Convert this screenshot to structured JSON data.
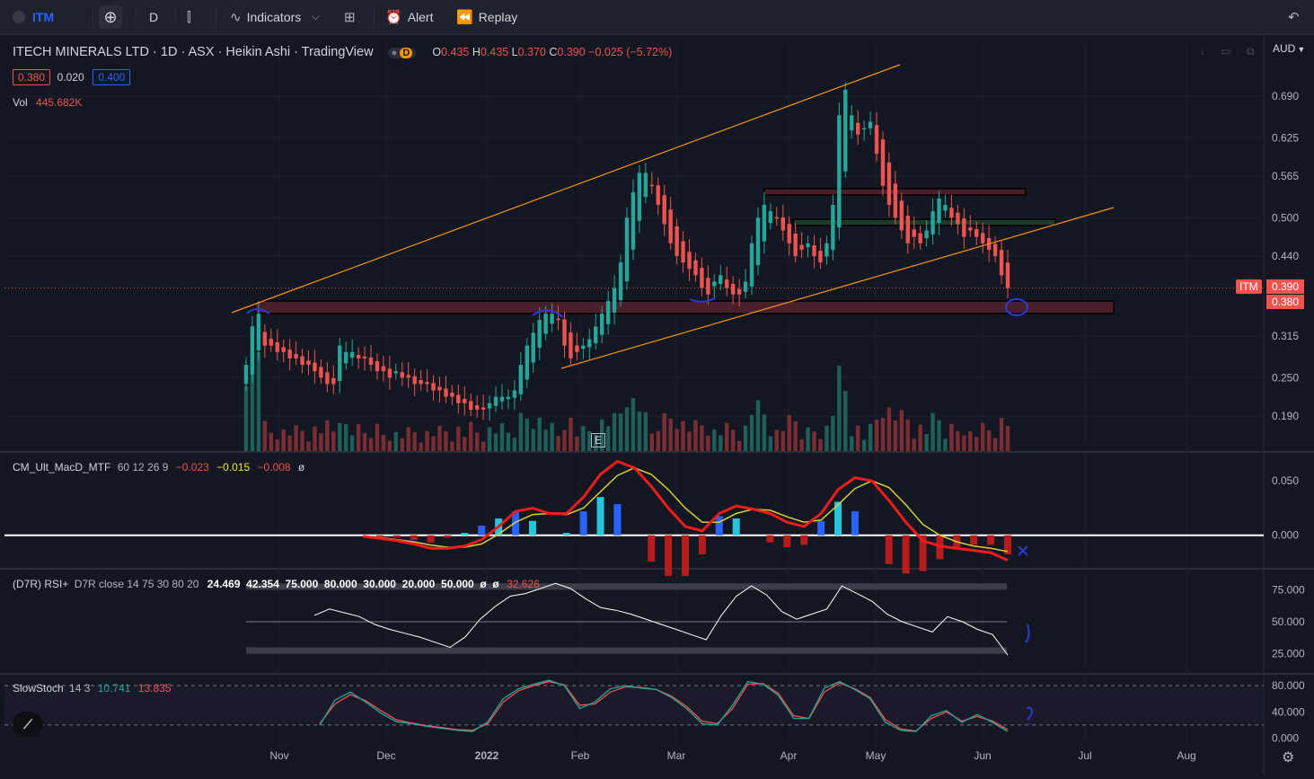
{
  "toolbar": {
    "symbol": "ITM",
    "interval": "D",
    "indicators": "Indicators",
    "alert": "Alert",
    "replay": "Replay"
  },
  "header": {
    "title": "ITECH MINERALS LTD · 1D · ASX · Heikin Ashi · TradingView",
    "badge": "D",
    "ohlc": {
      "o_label": "O",
      "o": "0.435",
      "h_label": "H",
      "h": "0.435",
      "l_label": "L",
      "l": "0.370",
      "c_label": "C",
      "c": "0.390",
      "chg": "−0.025 (−5.72%)"
    },
    "bid": "0.380",
    "spread": "0.020",
    "ask": "0.400",
    "vol_label": "Vol",
    "vol_value": "445.682K",
    "currency": "AUD"
  },
  "price_tags": {
    "symbol": "ITM",
    "last": "0.390",
    "other": "0.380"
  },
  "macd_legend": {
    "name": "CM_Ult_MacD_MTF",
    "params": "60 12 26 9",
    "v1": "−0.023",
    "v2": "−0.015",
    "v3": "−0.008",
    "v4": "ø"
  },
  "rsi_legend": {
    "name": "(D7R) RSI+",
    "params": "D7R close 14 75 30 80 20",
    "values": "24.469  42.354  75.000  80.000  30.000  20.000  50.000  ø  ø",
    "last": "32.626"
  },
  "stoch_legend": {
    "name": "SlowStoch",
    "params": "14 3",
    "k": "10.741",
    "d": "13.835"
  },
  "e_marker": "E",
  "colors": {
    "up": "#26a69a",
    "down": "#ef5350",
    "bg": "#131722",
    "orange": "#f7931a",
    "zone_red": "#4a1f2b",
    "zone_green": "#1e3a2b",
    "blue_ink": "#2a3bd8"
  },
  "chart_data": [
    {
      "type": "candlestick",
      "title": "ITECH MINERALS LTD · 1D · ASX · Heikin Ashi",
      "x_ticks": [
        "Nov",
        "Dec",
        "2022",
        "Feb",
        "Mar",
        "Apr",
        "May",
        "Jun",
        "Jul",
        "Aug"
      ],
      "y_ticks": [
        0.69,
        0.625,
        0.565,
        0.5,
        0.44,
        0.315,
        0.25,
        0.19
      ],
      "y_tick_labels": [
        "0.690",
        "0.625",
        "0.565",
        "0.500",
        "0.440",
        "0.315",
        "0.250",
        "0.190"
      ],
      "ylim": [
        0.135,
        0.745
      ],
      "closes": [
        0.27,
        0.33,
        0.35,
        0.3,
        0.3,
        0.29,
        0.29,
        0.28,
        0.28,
        0.27,
        0.27,
        0.26,
        0.25,
        0.24,
        0.24,
        0.3,
        0.29,
        0.29,
        0.28,
        0.28,
        0.27,
        0.26,
        0.26,
        0.25,
        0.26,
        0.25,
        0.25,
        0.24,
        0.24,
        0.24,
        0.23,
        0.23,
        0.22,
        0.22,
        0.21,
        0.21,
        0.2,
        0.2,
        0.2,
        0.21,
        0.22,
        0.22,
        0.22,
        0.23,
        0.27,
        0.3,
        0.32,
        0.34,
        0.35,
        0.35,
        0.34,
        0.3,
        0.28,
        0.29,
        0.3,
        0.31,
        0.33,
        0.35,
        0.37,
        0.39,
        0.43,
        0.5,
        0.54,
        0.57,
        0.57,
        0.55,
        0.52,
        0.49,
        0.46,
        0.44,
        0.43,
        0.42,
        0.41,
        0.39,
        0.38,
        0.4,
        0.41,
        0.39,
        0.38,
        0.38,
        0.4,
        0.46,
        0.5,
        0.52,
        0.51,
        0.5,
        0.48,
        0.46,
        0.44,
        0.45,
        0.46,
        0.44,
        0.43,
        0.46,
        0.52,
        0.66,
        0.7,
        0.66,
        0.63,
        0.64,
        0.65,
        0.6,
        0.55,
        0.52,
        0.5,
        0.48,
        0.46,
        0.47,
        0.46,
        0.48,
        0.51,
        0.53,
        0.52,
        0.5,
        0.49,
        0.47,
        0.48,
        0.47,
        0.46,
        0.45,
        0.44,
        0.41,
        0.39
      ],
      "ohlc_last": {
        "o": 0.435,
        "h": 0.435,
        "l": 0.37,
        "c": 0.39,
        "change": -0.025,
        "change_pct": -5.72
      },
      "volume_last": "445.682K",
      "horizontal_levels": [
        0.39,
        0.38
      ],
      "currency": "AUD"
    },
    {
      "type": "line",
      "title": "CM_Ult_MacD_MTF 60 12 26 9",
      "y_ticks": [
        0.05,
        0.0
      ],
      "y_tick_labels": [
        "0.050",
        "0.000"
      ],
      "ylim": [
        -0.03,
        0.075
      ],
      "series": [
        {
          "name": "MACD",
          "values": [
            -0.001,
            -0.003,
            -0.005,
            -0.008,
            -0.012,
            -0.012,
            -0.01,
            -0.004,
            0.008,
            0.022,
            0.025,
            0.02,
            0.02,
            0.035,
            0.056,
            0.068,
            0.062,
            0.045,
            0.025,
            0.008,
            0.004,
            0.02,
            0.027,
            0.024,
            0.02,
            0.012,
            0.008,
            0.02,
            0.042,
            0.053,
            0.05,
            0.032,
            0.012,
            -0.005,
            -0.01,
            -0.012,
            -0.014,
            -0.016,
            -0.023
          ]
        },
        {
          "name": "Signal",
          "values": [
            -0.001,
            -0.002,
            -0.004,
            -0.006,
            -0.009,
            -0.011,
            -0.011,
            -0.008,
            0.001,
            0.012,
            0.019,
            0.02,
            0.019,
            0.025,
            0.04,
            0.055,
            0.062,
            0.056,
            0.042,
            0.025,
            0.012,
            0.012,
            0.02,
            0.024,
            0.023,
            0.017,
            0.012,
            0.014,
            0.028,
            0.043,
            0.05,
            0.044,
            0.028,
            0.01,
            0.0,
            -0.006,
            -0.01,
            -0.012,
            -0.015
          ]
        }
      ],
      "last": {
        "macd": -0.023,
        "signal": -0.015,
        "histogram": -0.008
      }
    },
    {
      "type": "line",
      "title": "(D7R) RSI+ D7R close 14 75 30 80 20",
      "y_ticks": [
        75,
        50,
        25
      ],
      "y_tick_labels": [
        "75.000",
        "50.000",
        "25.000"
      ],
      "ylim": [
        10,
        90
      ],
      "levels": [
        75,
        80,
        30,
        20,
        50
      ],
      "series": [
        {
          "name": "RSI",
          "values": [
            55,
            60,
            57,
            54,
            48,
            44,
            41,
            38,
            34,
            30,
            38,
            52,
            62,
            70,
            72,
            76,
            80,
            76,
            68,
            61,
            59,
            56,
            52,
            48,
            44,
            40,
            36,
            55,
            70,
            78,
            71,
            58,
            52,
            56,
            60,
            78,
            72,
            66,
            56,
            50,
            46,
            42,
            54,
            50,
            44,
            40,
            24
          ]
        }
      ],
      "last": 24.469
    },
    {
      "type": "line",
      "title": "SlowStoch 14 3",
      "y_ticks": [
        80,
        40,
        0
      ],
      "y_tick_labels": [
        "80.000",
        "40.000",
        "0.000"
      ],
      "ylim": [
        -2,
        95
      ],
      "series": [
        {
          "name": "%K",
          "values": [
            20,
            58,
            70,
            55,
            38,
            25,
            22,
            18,
            15,
            12,
            10,
            25,
            60,
            75,
            82,
            88,
            80,
            45,
            55,
            75,
            80,
            76,
            74,
            62,
            45,
            22,
            20,
            50,
            86,
            82,
            65,
            30,
            30,
            76,
            86,
            74,
            60,
            24,
            12,
            10,
            34,
            42,
            24,
            36,
            24,
            10
          ]
        },
        {
          "name": "%D",
          "values": [
            22,
            52,
            66,
            57,
            42,
            28,
            23,
            19,
            16,
            13,
            12,
            22,
            55,
            72,
            80,
            86,
            81,
            50,
            52,
            70,
            78,
            77,
            74,
            64,
            48,
            26,
            22,
            45,
            82,
            83,
            68,
            34,
            30,
            70,
            84,
            75,
            62,
            28,
            14,
            11,
            30,
            40,
            26,
            33,
            26,
            13
          ]
        }
      ],
      "last": {
        "k": 10.741,
        "d": 13.835
      }
    }
  ]
}
